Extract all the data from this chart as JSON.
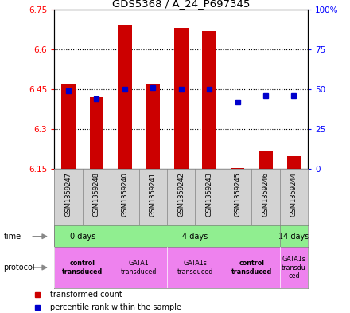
{
  "title": "GDS5368 / A_24_P697345",
  "samples": [
    "GSM1359247",
    "GSM1359248",
    "GSM1359240",
    "GSM1359241",
    "GSM1359242",
    "GSM1359243",
    "GSM1359245",
    "GSM1359246",
    "GSM1359244"
  ],
  "red_values": [
    6.47,
    6.42,
    6.69,
    6.47,
    6.68,
    6.67,
    6.155,
    6.22,
    6.2
  ],
  "blue_values": [
    49,
    44,
    50,
    51,
    50,
    50,
    42,
    46,
    46
  ],
  "ylim_left": [
    6.15,
    6.75
  ],
  "ylim_right": [
    0,
    100
  ],
  "yticks_left": [
    6.15,
    6.3,
    6.45,
    6.6,
    6.75
  ],
  "yticks_right": [
    0,
    25,
    50,
    75,
    100
  ],
  "ytick_labels_left": [
    "6.15",
    "6.3",
    "6.45",
    "6.6",
    "6.75"
  ],
  "ytick_labels_right": [
    "0",
    "25",
    "50",
    "75",
    "100%"
  ],
  "hlines": [
    6.3,
    6.45,
    6.6
  ],
  "bar_color": "#cc0000",
  "dot_color": "#0000cc",
  "time_groups": [
    {
      "label": "0 days",
      "start": 0,
      "end": 2,
      "color": "#90ee90"
    },
    {
      "label": "4 days",
      "start": 2,
      "end": 8,
      "color": "#90ee90"
    },
    {
      "label": "14 days",
      "start": 8,
      "end": 9,
      "color": "#90ee90"
    }
  ],
  "protocol_groups": [
    {
      "label": "control\ntransduced",
      "start": 0,
      "end": 2,
      "color": "#ee82ee",
      "bold": true
    },
    {
      "label": "GATA1\ntransduced",
      "start": 2,
      "end": 4,
      "color": "#ee82ee",
      "bold": false
    },
    {
      "label": "GATA1s\ntransduced",
      "start": 4,
      "end": 6,
      "color": "#ee82ee",
      "bold": false
    },
    {
      "label": "control\ntransduced",
      "start": 6,
      "end": 8,
      "color": "#ee82ee",
      "bold": true
    },
    {
      "label": "GATA1s\ntransdu\nced",
      "start": 8,
      "end": 9,
      "color": "#ee82ee",
      "bold": false
    }
  ],
  "legend_red": "transformed count",
  "legend_blue": "percentile rank within the sample",
  "bar_bottom": 6.15,
  "bar_width": 0.5
}
